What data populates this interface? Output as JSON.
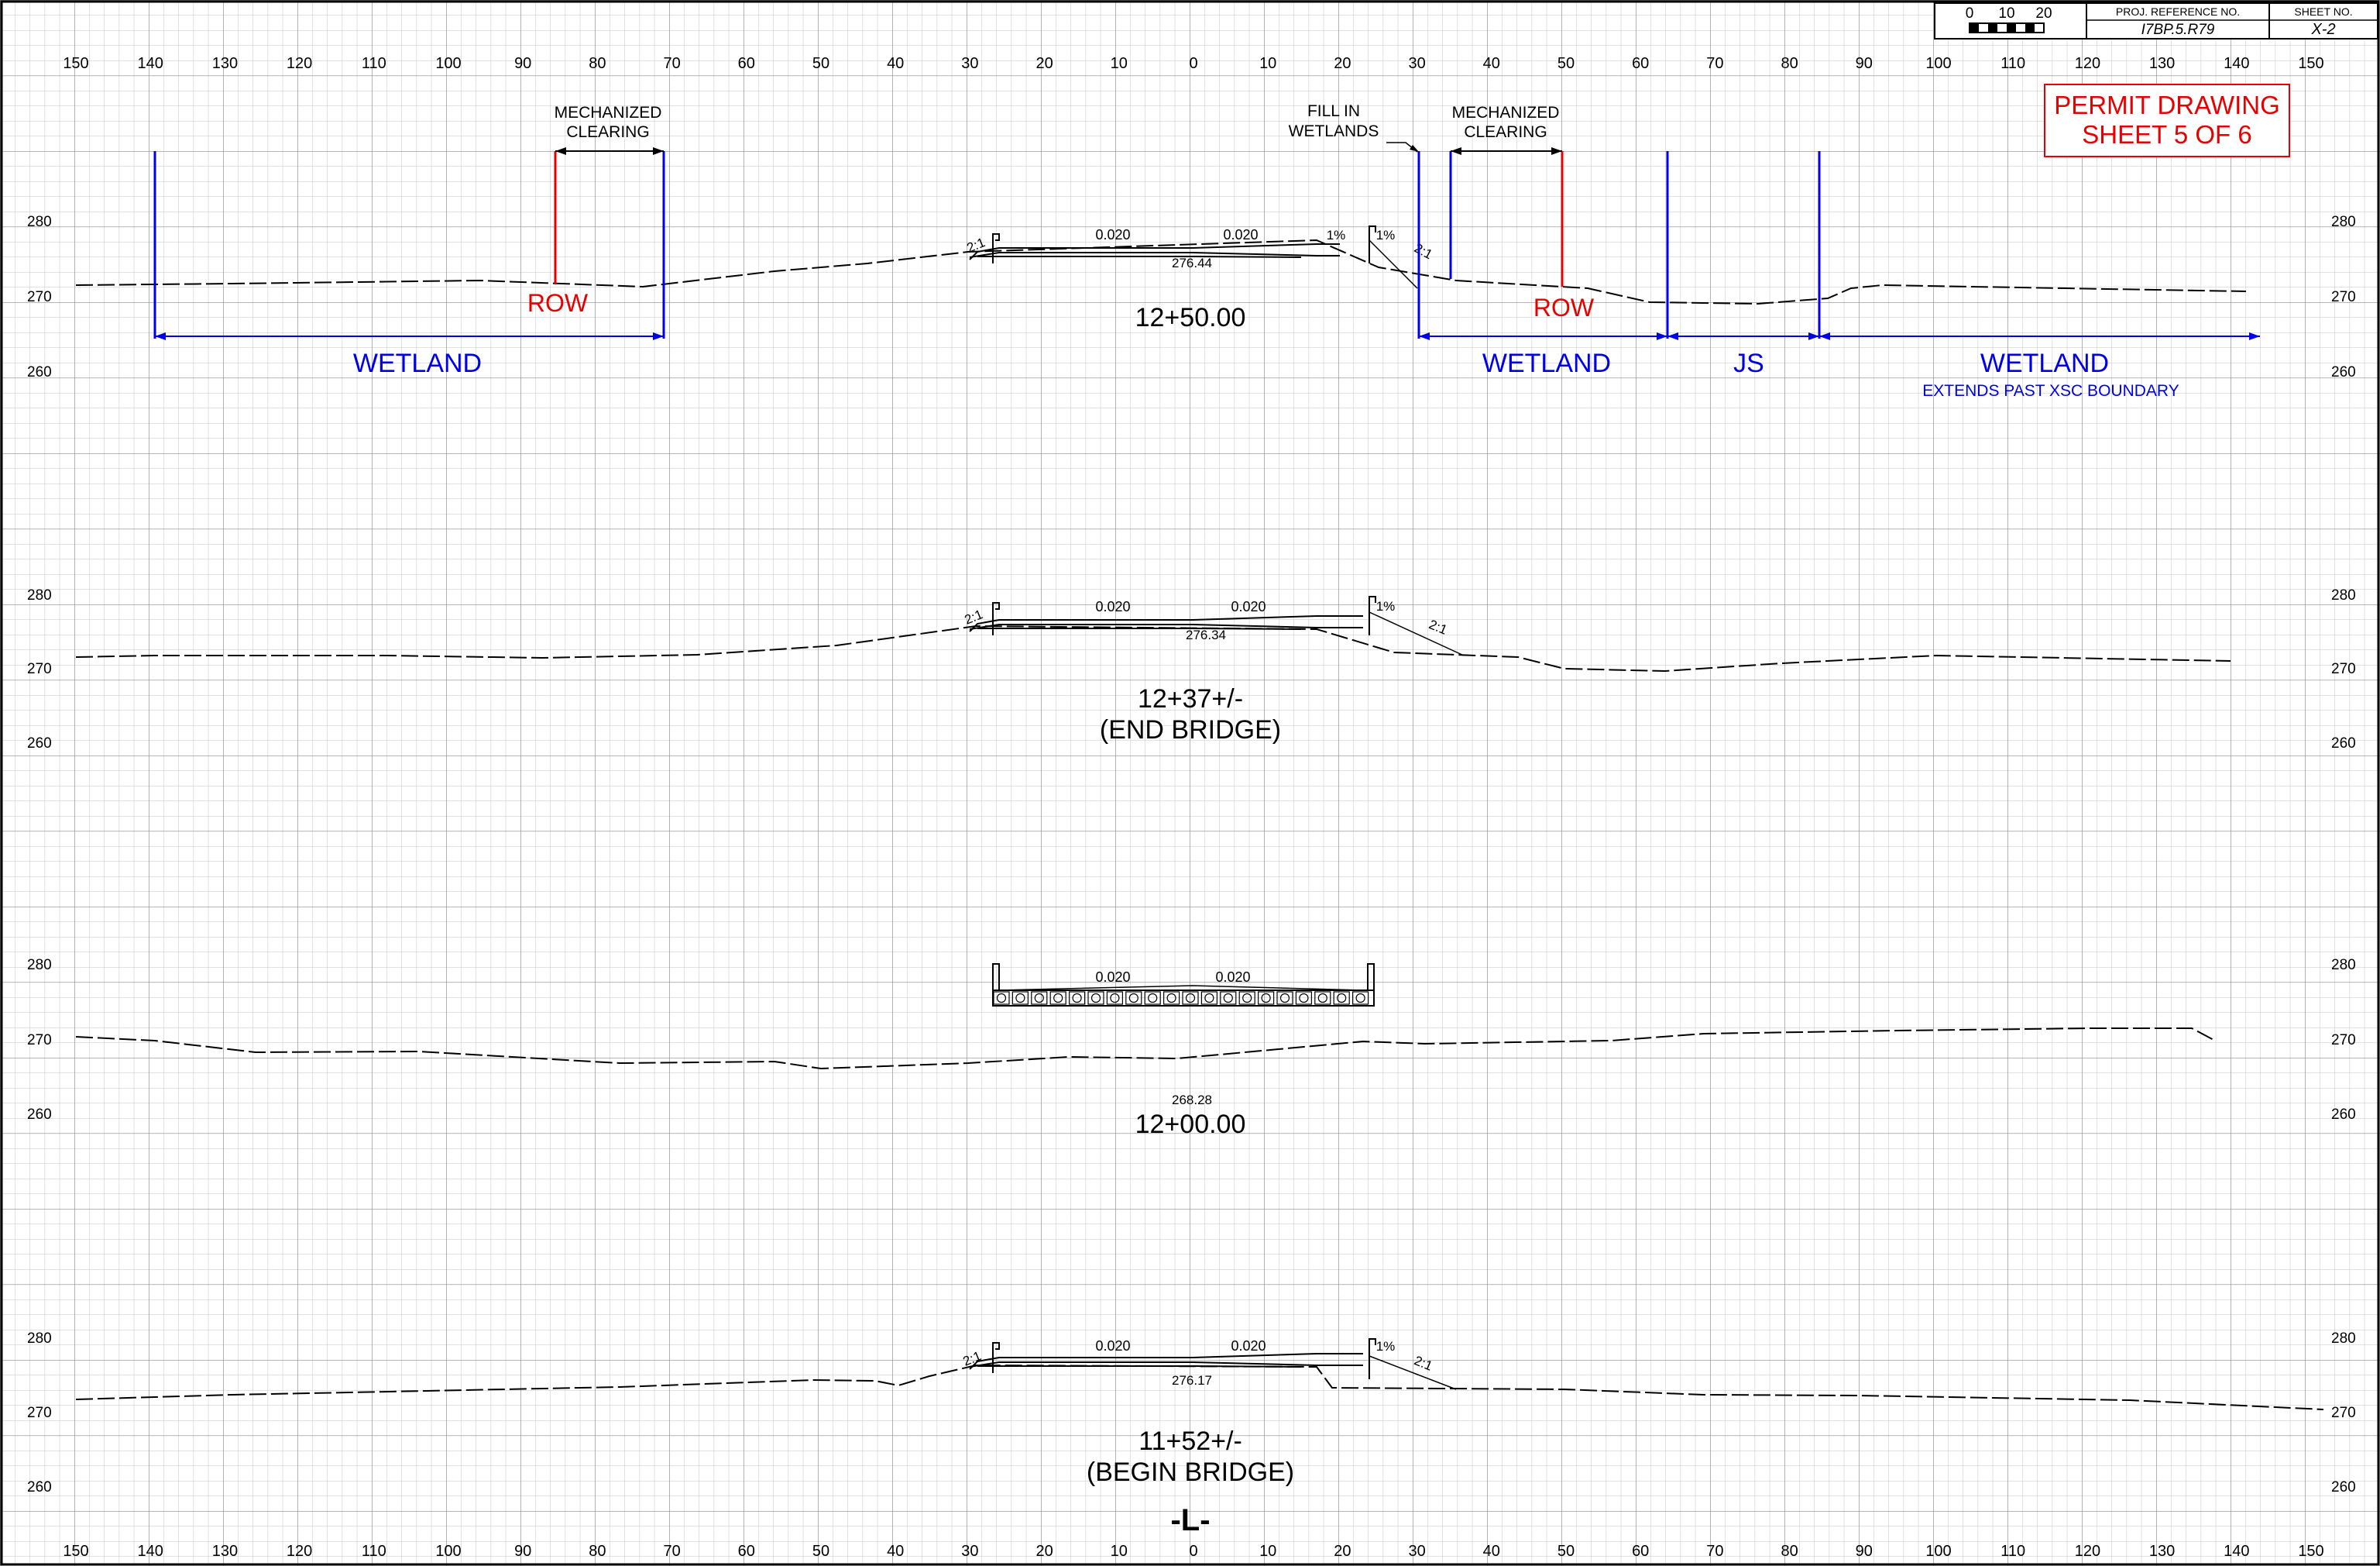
{
  "title_block": {
    "scale_labels": [
      "0",
      "10",
      "20"
    ],
    "proj_ref_header": "PROJ. REFERENCE NO.",
    "proj_ref_value": "I7BP.5.R79",
    "sheet_no_header": "SHEET NO.",
    "sheet_no_value": "X-2"
  },
  "permit": {
    "line1": "PERMIT DRAWING",
    "line2": "SHEET 5 OF 6"
  },
  "offset_ticks": [
    "150",
    "140",
    "130",
    "120",
    "110",
    "100",
    "90",
    "80",
    "70",
    "60",
    "50",
    "40",
    "30",
    "20",
    "10",
    "0",
    "10",
    "20",
    "30",
    "40",
    "50",
    "60",
    "70",
    "80",
    "90",
    "100",
    "110",
    "120",
    "130",
    "140",
    "150"
  ],
  "sections": [
    {
      "station": "12+50.00",
      "subtitle": "",
      "elevations": [
        "280",
        "270",
        "260"
      ],
      "crown_elevation": "276.44",
      "slopes": [
        "0.020",
        "0.020"
      ],
      "side_slope_left": "2:1",
      "side_slope_right": "2:1",
      "shoulder_slope": "1%",
      "shoulder_slope_2": "1%",
      "annotations": {
        "mech_clearing_left": [
          "MECHANIZED",
          "CLEARING"
        ],
        "fill_in_wetlands": [
          "FILL IN",
          "WETLANDS"
        ],
        "mech_clearing_right": [
          "MECHANIZED",
          "CLEARING"
        ],
        "row_left": "ROW",
        "row_right": "ROW",
        "wetland_left": "WETLAND",
        "wetland_mid": "WETLAND",
        "js": "JS",
        "wetland_right": "WETLAND",
        "extends_note": "EXTENDS PAST XSC BOUNDARY"
      }
    },
    {
      "station": "12+37+/-",
      "subtitle": "(END BRIDGE)",
      "elevations": [
        "280",
        "270",
        "260"
      ],
      "crown_elevation": "276.34",
      "slopes": [
        "0.020",
        "0.020"
      ],
      "side_slope_left": "2:1",
      "side_slope_right": "2:1",
      "shoulder_slope": "1%"
    },
    {
      "station": "12+00.00",
      "subtitle": "",
      "elevations": [
        "280",
        "270",
        "260"
      ],
      "crown_elevation": "268.28",
      "slopes": [
        "0.020",
        "0.020"
      ]
    },
    {
      "station": "11+52+/-",
      "subtitle": "(BEGIN BRIDGE)",
      "elevations": [
        "280",
        "270",
        "260"
      ],
      "crown_elevation": "276.17",
      "slopes": [
        "0.020",
        "0.020"
      ],
      "side_slope_left": "2:1",
      "side_slope_right": "2:1",
      "shoulder_slope": "1%"
    }
  ],
  "alignment_label": "-L-",
  "colors": {
    "grid": "#b8b8b8",
    "red": "#e60000",
    "blue": "#0000e6",
    "ink": "#000000"
  }
}
